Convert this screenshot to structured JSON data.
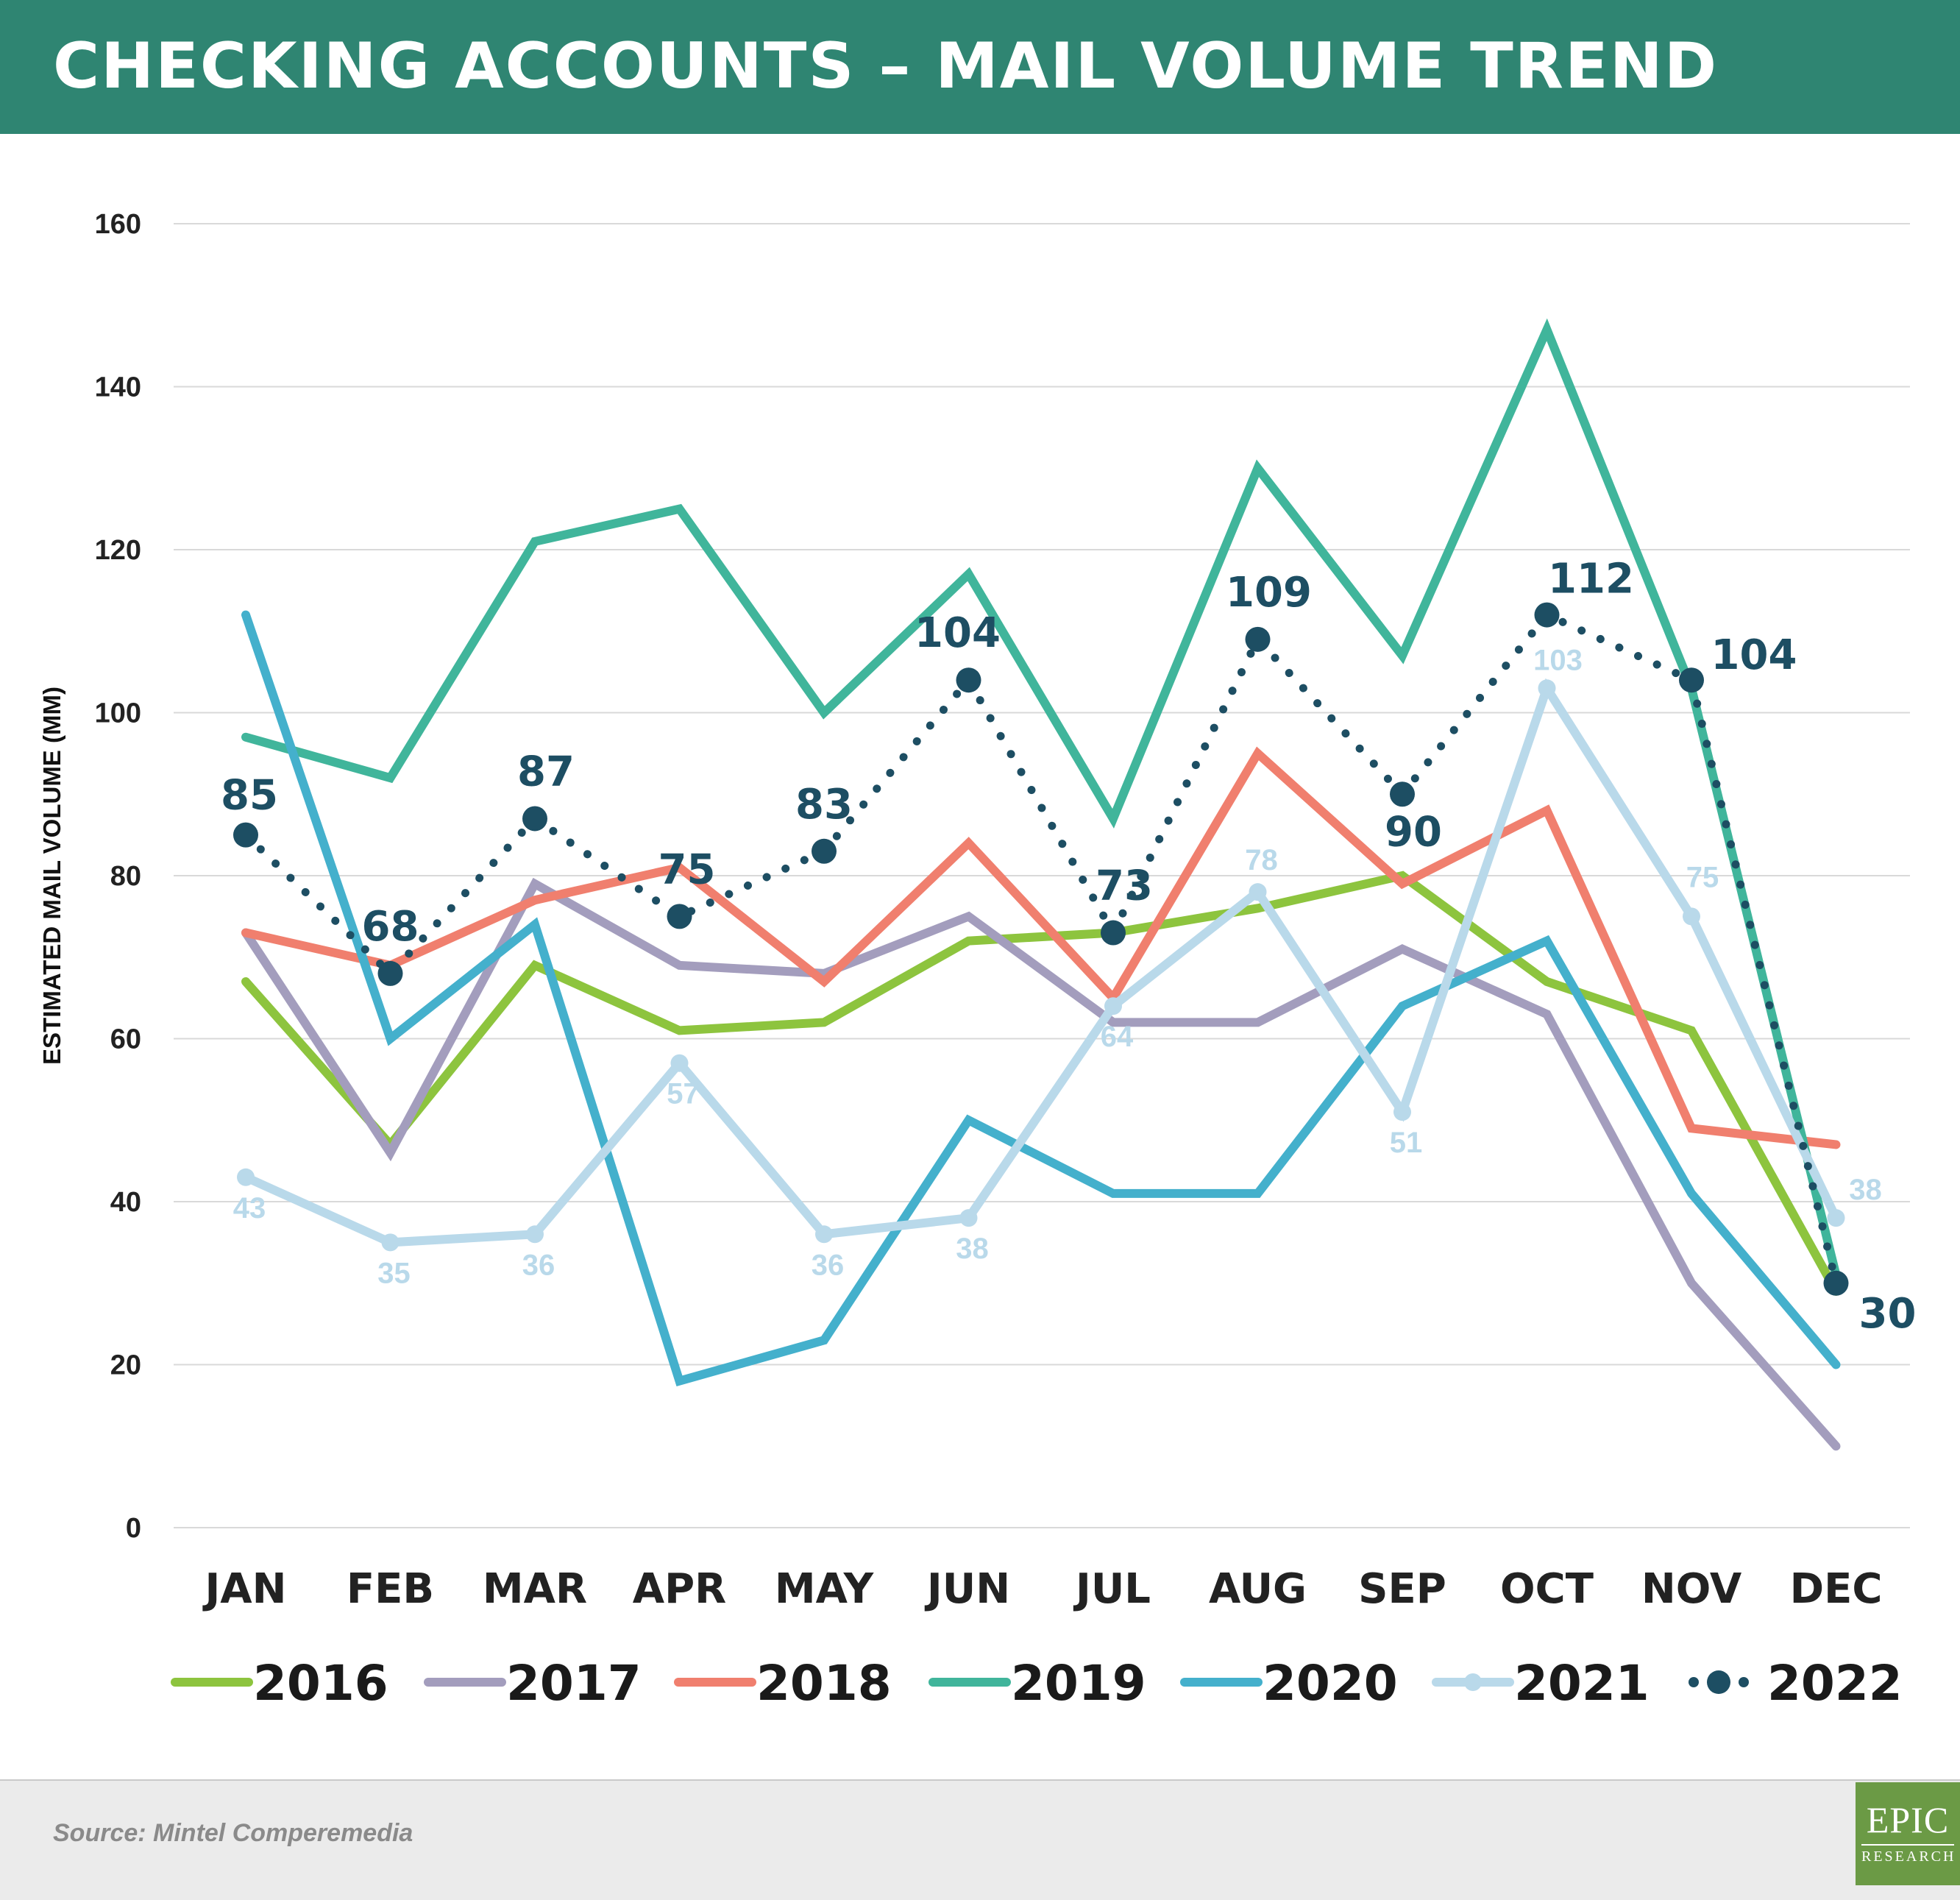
{
  "header": {
    "title": "CHECKING ACCOUNTS – MAIL VOLUME TREND"
  },
  "footer": {
    "source": "Source: Mintel Comperemedia",
    "logo_big": "EPIC",
    "logo_small": "RESEARCH"
  },
  "chart_data": {
    "type": "line",
    "title": "CHECKING ACCOUNTS – MAIL VOLUME TREND",
    "ylabel": "ESTIMATED MAIL VOLUME (MM)",
    "xlabel": "",
    "ylim": [
      0,
      160
    ],
    "yticks": [
      0,
      20,
      40,
      60,
      80,
      100,
      120,
      140,
      160
    ],
    "grid": true,
    "legend": "bottom",
    "categories": [
      "JAN",
      "FEB",
      "MAR",
      "APR",
      "MAY",
      "JUN",
      "JUL",
      "AUG",
      "SEP",
      "OCT",
      "NOV",
      "DEC"
    ],
    "series": [
      {
        "name": "2016",
        "color": "#8dc43e",
        "values": [
          67,
          47,
          69,
          61,
          62,
          72,
          73,
          76,
          80,
          67,
          61,
          29
        ]
      },
      {
        "name": "2017",
        "color": "#a39dbd",
        "values": [
          73,
          46,
          79,
          69,
          68,
          75,
          62,
          62,
          71,
          63,
          30,
          10
        ]
      },
      {
        "name": "2018",
        "color": "#f07f6e",
        "values": [
          73,
          69,
          77,
          81,
          67,
          84,
          65,
          95,
          79,
          88,
          49,
          47
        ]
      },
      {
        "name": "2019",
        "color": "#40b59b",
        "values": [
          97,
          92,
          121,
          125,
          100,
          117,
          87,
          130,
          107,
          147,
          103,
          31
        ]
      },
      {
        "name": "2020",
        "color": "#44b0cc",
        "values": [
          112,
          60,
          74,
          18,
          23,
          50,
          41,
          41,
          64,
          72,
          41,
          20
        ]
      },
      {
        "name": "2021",
        "color": "#b9d9ea",
        "values": [
          43,
          35,
          36,
          57,
          36,
          38,
          64,
          78,
          51,
          103,
          75,
          38
        ],
        "labels": [
          "43",
          "35",
          "36",
          "57",
          "36",
          "38",
          "64",
          "78",
          "51",
          "103",
          "75",
          "38"
        ]
      },
      {
        "name": "2022",
        "color": "#1d4e63",
        "values": [
          85,
          68,
          87,
          75,
          83,
          104,
          73,
          109,
          90,
          112,
          104,
          30
        ],
        "labels": [
          "85",
          "68",
          "87",
          "75",
          "83",
          "104",
          "73",
          "109",
          "90",
          "112",
          "104",
          "30"
        ]
      }
    ]
  }
}
